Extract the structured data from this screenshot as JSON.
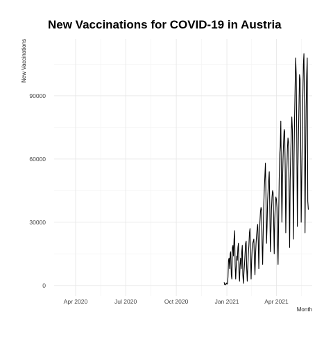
{
  "chart_data": {
    "type": "line",
    "title": "New Vaccinations for COVID-19 in Austria",
    "xlabel": "Month",
    "ylabel": "New Vaccinations",
    "grid": true,
    "legend": "none",
    "x_range": [
      "2020-02-22",
      "2021-06-05"
    ],
    "ylim": [
      -5000,
      117000
    ],
    "x_ticks": [
      {
        "date": "2020-04-01",
        "label": "Apr 2020"
      },
      {
        "date": "2020-07-01",
        "label": "Jul 2020"
      },
      {
        "date": "2020-10-01",
        "label": "Oct 2020"
      },
      {
        "date": "2021-01-01",
        "label": "Jan 2021"
      },
      {
        "date": "2021-04-01",
        "label": "Apr 2021"
      }
    ],
    "y_ticks": [
      {
        "value": 0,
        "label": "0"
      },
      {
        "value": 30000,
        "label": "30000"
      },
      {
        "value": 60000,
        "label": "60000"
      },
      {
        "value": 90000,
        "label": "90000"
      }
    ],
    "series": [
      {
        "color": "#000000",
        "x": [
          "2020-12-27",
          "2020-12-28",
          "2020-12-29",
          "2020-12-30",
          "2020-12-31",
          "2021-01-01",
          "2021-01-02",
          "2021-01-03",
          "2021-01-04",
          "2021-01-05",
          "2021-01-06",
          "2021-01-07",
          "2021-01-08",
          "2021-01-09",
          "2021-01-10",
          "2021-01-11",
          "2021-01-12",
          "2021-01-13",
          "2021-01-14",
          "2021-01-15",
          "2021-01-16",
          "2021-01-17",
          "2021-01-18",
          "2021-01-19",
          "2021-01-20",
          "2021-01-21",
          "2021-01-22",
          "2021-01-23",
          "2021-01-24",
          "2021-01-25",
          "2021-01-26",
          "2021-01-27",
          "2021-01-28",
          "2021-01-29",
          "2021-01-30",
          "2021-01-31",
          "2021-02-01",
          "2021-02-02",
          "2021-02-03",
          "2021-02-04",
          "2021-02-05",
          "2021-02-06",
          "2021-02-07",
          "2021-02-08",
          "2021-02-09",
          "2021-02-10",
          "2021-02-11",
          "2021-02-12",
          "2021-02-13",
          "2021-02-14",
          "2021-02-15",
          "2021-02-16",
          "2021-02-17",
          "2021-02-18",
          "2021-02-19",
          "2021-02-20",
          "2021-02-21",
          "2021-02-22",
          "2021-02-23",
          "2021-02-24",
          "2021-02-25",
          "2021-02-26",
          "2021-02-27",
          "2021-02-28",
          "2021-03-01",
          "2021-03-02",
          "2021-03-03",
          "2021-03-04",
          "2021-03-05",
          "2021-03-06",
          "2021-03-07",
          "2021-03-08",
          "2021-03-09",
          "2021-03-10",
          "2021-03-11",
          "2021-03-12",
          "2021-03-13",
          "2021-03-14",
          "2021-03-15",
          "2021-03-16",
          "2021-03-17",
          "2021-03-18",
          "2021-03-19",
          "2021-03-20",
          "2021-03-21",
          "2021-03-22",
          "2021-03-23",
          "2021-03-24",
          "2021-03-25",
          "2021-03-26",
          "2021-03-27",
          "2021-03-28",
          "2021-03-29",
          "2021-03-30",
          "2021-03-31",
          "2021-04-01",
          "2021-04-02",
          "2021-04-03",
          "2021-04-04",
          "2021-04-05",
          "2021-04-06",
          "2021-04-07",
          "2021-04-08",
          "2021-04-09",
          "2021-04-10",
          "2021-04-11",
          "2021-04-12",
          "2021-04-13",
          "2021-04-14",
          "2021-04-15",
          "2021-04-16",
          "2021-04-17",
          "2021-04-18",
          "2021-04-19",
          "2021-04-20",
          "2021-04-21",
          "2021-04-22",
          "2021-04-23",
          "2021-04-24",
          "2021-04-25",
          "2021-04-26",
          "2021-04-27",
          "2021-04-28",
          "2021-04-29",
          "2021-04-30",
          "2021-05-01",
          "2021-05-02",
          "2021-05-03",
          "2021-05-04",
          "2021-05-05",
          "2021-05-06",
          "2021-05-07",
          "2021-05-08",
          "2021-05-09",
          "2021-05-10",
          "2021-05-11",
          "2021-05-12",
          "2021-05-13",
          "2021-05-14",
          "2021-05-15",
          "2021-05-16",
          "2021-05-17",
          "2021-05-18",
          "2021-05-19",
          "2021-05-20",
          "2021-05-21",
          "2021-05-22",
          "2021-05-23",
          "2021-05-24",
          "2021-05-25",
          "2021-05-26",
          "2021-05-27",
          "2021-05-28",
          "2021-05-29"
        ],
        "y": [
          1500,
          400,
          300,
          600,
          1200,
          600,
          800,
          4000,
          12000,
          13000,
          8000,
          15000,
          16000,
          5000,
          3000,
          18000,
          19000,
          14000,
          22000,
          26000,
          10000,
          3000,
          9000,
          14000,
          12000,
          18000,
          20000,
          6000,
          2000,
          10000,
          13000,
          8000,
          16000,
          19000,
          5000,
          1000,
          6000,
          10000,
          15000,
          20000,
          21000,
          8000,
          2000,
          9000,
          15000,
          19000,
          25000,
          27000,
          14000,
          3000,
          12000,
          18000,
          20000,
          21000,
          22000,
          12000,
          5000,
          14000,
          20000,
          24000,
          27000,
          29000,
          21000,
          8000,
          22000,
          30000,
          35000,
          37000,
          36000,
          19000,
          10000,
          26000,
          38000,
          46000,
          52000,
          58000,
          42000,
          20000,
          28000,
          40000,
          46000,
          50000,
          54000,
          36000,
          16000,
          25000,
          36000,
          42000,
          45000,
          44000,
          30000,
          15000,
          32000,
          38000,
          42000,
          41000,
          37000,
          20000,
          10000,
          30000,
          50000,
          62000,
          66000,
          78000,
          50000,
          30000,
          48000,
          60000,
          68000,
          74000,
          73000,
          55000,
          25000,
          42000,
          55000,
          65000,
          70000,
          68000,
          45000,
          18000,
          50000,
          62000,
          72000,
          80000,
          74000,
          47000,
          22000,
          60000,
          80000,
          95000,
          108000,
          100000,
          70000,
          28000,
          55000,
          70000,
          85000,
          100000,
          98000,
          75000,
          30000,
          50000,
          70000,
          90000,
          105000,
          110000,
          85000,
          25000,
          60000,
          85000,
          100000,
          108000,
          40000,
          36000
        ]
      }
    ]
  }
}
